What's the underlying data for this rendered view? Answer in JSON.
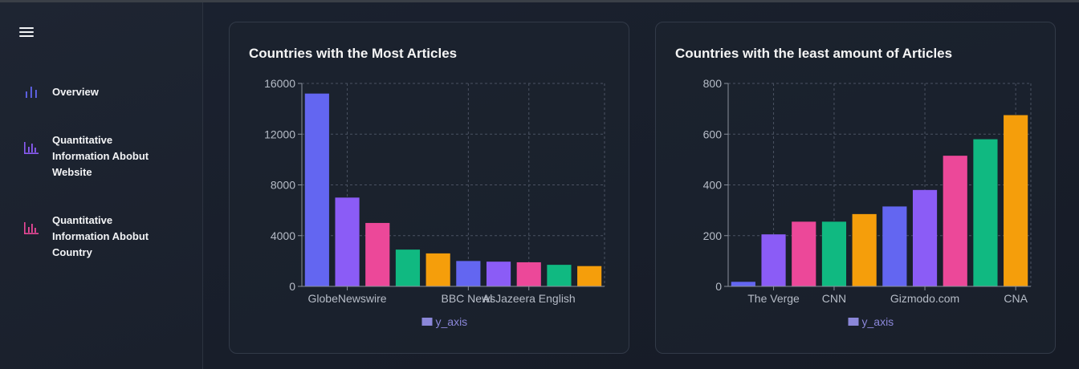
{
  "sidebar": {
    "menu_icon": "hamburger-menu-icon",
    "items": [
      {
        "label": "Overview",
        "icon": "bar-chart-icon",
        "color": "#6366f1"
      },
      {
        "label": "Quantitative Information Abobut Website",
        "lines": [
          "Quantitative",
          "Information Abobut",
          "Website"
        ],
        "icon": "bar-chart-icon",
        "color": "#8b5cf6"
      },
      {
        "label": "Quantitative Information Abobut Country",
        "lines": [
          "Quantitative",
          "Information Abobut",
          "Country"
        ],
        "icon": "bar-chart-icon",
        "color": "#ec4899"
      }
    ]
  },
  "colors": [
    "#6366f1",
    "#8b5cf6",
    "#ec4899",
    "#10b981",
    "#f59e0b"
  ],
  "chart_data": [
    {
      "type": "bar",
      "title": "Countries with the Most Articles",
      "categories": [
        "",
        "GlobeNewswire",
        "",
        "",
        "",
        "BBC News",
        "",
        "Al Jazeera English",
        "",
        ""
      ],
      "series": [
        {
          "name": "y_axis",
          "values": [
            15200,
            7000,
            5000,
            2900,
            2600,
            2000,
            1950,
            1900,
            1700,
            1600
          ]
        }
      ],
      "ylim": [
        0,
        16000
      ],
      "yticks": [
        0,
        4000,
        8000,
        12000,
        16000
      ],
      "grid": true,
      "legend": "bottom"
    },
    {
      "type": "bar",
      "title": "Countries with the least amount of Articles",
      "categories": [
        "",
        "The Verge",
        "",
        "CNN",
        "",
        "",
        "Gizmodo.com",
        "",
        "",
        "CNA"
      ],
      "series": [
        {
          "name": "y_axis",
          "values": [
            18,
            205,
            255,
            255,
            285,
            315,
            380,
            515,
            580,
            675
          ]
        }
      ],
      "ylim": [
        0,
        800
      ],
      "yticks": [
        0,
        200,
        400,
        600,
        800
      ],
      "grid": true,
      "legend": "bottom"
    }
  ]
}
